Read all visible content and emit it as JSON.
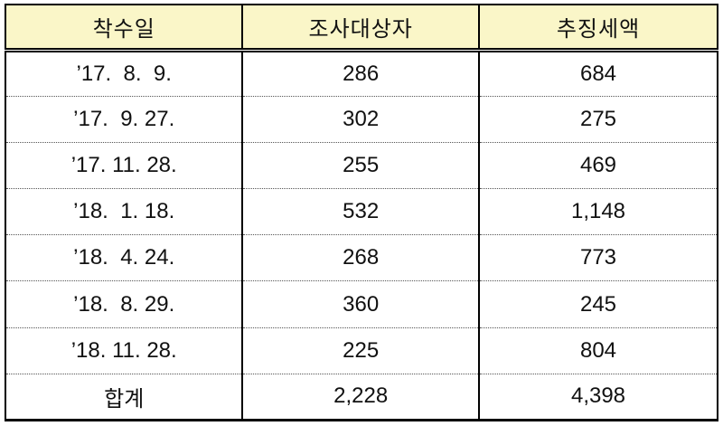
{
  "page": {
    "background": "#ffffff"
  },
  "colors": {
    "header_bg": "#faf6c8",
    "border": "#000000",
    "dotted_line": "#555555",
    "text": "#111111"
  },
  "table": {
    "columns": [
      {
        "label": "착수일"
      },
      {
        "label": "조사대상자"
      },
      {
        "label": "추징세액"
      }
    ],
    "rows": [
      {
        "date": "’17.  8.  9.",
        "subjects": "286",
        "tax": "684",
        "is_total": false
      },
      {
        "date": "’17.  9. 27.",
        "subjects": "302",
        "tax": "275",
        "is_total": false
      },
      {
        "date": "’17. 11. 28.",
        "subjects": "255",
        "tax": "469",
        "is_total": false
      },
      {
        "date": "’18.  1. 18.",
        "subjects": "532",
        "tax": "1,148",
        "is_total": false
      },
      {
        "date": "’18.  4. 24.",
        "subjects": "268",
        "tax": "773",
        "is_total": false
      },
      {
        "date": "’18.  8. 29.",
        "subjects": "360",
        "tax": "245",
        "is_total": false
      },
      {
        "date": "’18. 11. 28.",
        "subjects": "225",
        "tax": "804",
        "is_total": false
      },
      {
        "date": "합계",
        "subjects": "2,228",
        "tax": "4,398",
        "is_total": true
      }
    ]
  },
  "chart_data": {
    "type": "table",
    "columns": [
      "착수일",
      "조사대상자",
      "추징세액"
    ],
    "rows": [
      [
        "’17. 8. 9.",
        286,
        684
      ],
      [
        "’17. 9. 27.",
        302,
        275
      ],
      [
        "’17. 11. 28.",
        255,
        469
      ],
      [
        "’18. 1. 18.",
        532,
        1148
      ],
      [
        "’18. 4. 24.",
        268,
        773
      ],
      [
        "’18. 8. 29.",
        360,
        245
      ],
      [
        "’18. 11. 28.",
        225,
        804
      ]
    ],
    "total_row": {
      "label": "합계",
      "조사대상자": 2228,
      "추징세액": 4398
    },
    "layout_hints": {
      "header_background": "#faf6c8",
      "header_bottom_border": "double",
      "row_separators": "dotted",
      "column_separators": "solid"
    }
  }
}
